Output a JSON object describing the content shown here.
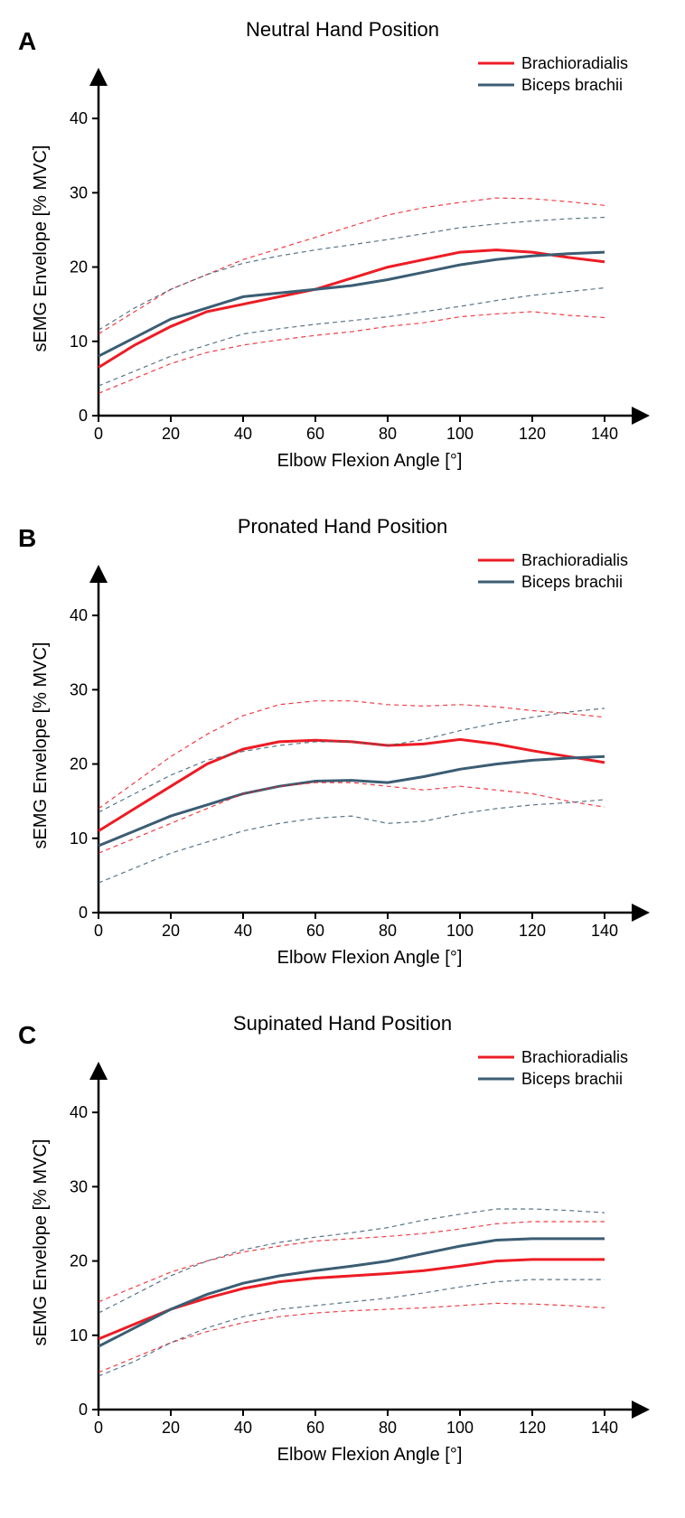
{
  "global": {
    "legend": {
      "brachioradialis": "Brachioradialis",
      "biceps": "Biceps brachii"
    },
    "colors": {
      "brachioradialis": "#ed1c24",
      "biceps": "#3b5d73",
      "brachioradialis_dash": "#ed1c24",
      "biceps_dash": "#3b5d73",
      "axis": "#000000",
      "tick_text": "#000000",
      "background": "#ffffff"
    },
    "xlabel": "Elbow Flexion Angle [°]",
    "ylabel": "sEMG Envelope [% MVC]",
    "xlim": [
      0,
      150
    ],
    "ylim": [
      0,
      45
    ],
    "xtick_step": 20,
    "xtick_max": 140,
    "ytick_step": 10,
    "ytick_max": 40,
    "solid_width": 3,
    "dash_width": 1.2,
    "dash_pattern": "5,4",
    "label_fontsize": 20,
    "tick_fontsize": 18,
    "legend_fontsize": 18,
    "title_fontsize": 22,
    "letter_fontsize": 28
  },
  "panels": [
    {
      "letter": "A",
      "title": "Neutral Hand Position",
      "type": "line",
      "x": [
        0,
        10,
        20,
        30,
        40,
        50,
        60,
        70,
        80,
        90,
        100,
        110,
        120,
        130,
        140
      ],
      "series": [
        {
          "name": "Brachioradialis",
          "color": "brachioradialis",
          "style": "solid",
          "y": [
            6.5,
            9.5,
            12,
            14,
            15,
            16,
            17,
            18.5,
            20,
            21,
            22,
            22.3,
            22,
            21.3,
            20.7
          ]
        },
        {
          "name": "Biceps brachii",
          "color": "biceps",
          "style": "solid",
          "y": [
            8,
            10.5,
            13,
            14.5,
            16,
            16.5,
            17,
            17.5,
            18.3,
            19.3,
            20.3,
            21,
            21.5,
            21.8,
            22
          ]
        },
        {
          "name": "Brachioradialis upper",
          "color": "brachioradialis_dash",
          "style": "dash",
          "y": [
            11,
            14,
            17,
            19,
            21,
            22.5,
            24,
            25.5,
            27,
            28,
            28.7,
            29.3,
            29.2,
            28.8,
            28.3
          ]
        },
        {
          "name": "Brachioradialis lower",
          "color": "brachioradialis_dash",
          "style": "dash",
          "y": [
            3,
            5,
            7,
            8.5,
            9.5,
            10.2,
            10.8,
            11.3,
            12,
            12.5,
            13.3,
            13.7,
            14,
            13.5,
            13.2
          ]
        },
        {
          "name": "Biceps brachii upper",
          "color": "biceps_dash",
          "style": "dash",
          "y": [
            11.5,
            14.5,
            17,
            19,
            20.5,
            21.5,
            22.3,
            23,
            23.7,
            24.5,
            25.3,
            25.8,
            26.2,
            26.5,
            26.7
          ]
        },
        {
          "name": "Biceps brachii lower",
          "color": "biceps_dash",
          "style": "dash",
          "y": [
            4,
            6,
            8,
            9.5,
            11,
            11.7,
            12.3,
            12.8,
            13.3,
            14,
            14.7,
            15.5,
            16.2,
            16.7,
            17.2
          ]
        }
      ]
    },
    {
      "letter": "B",
      "title": "Pronated Hand Position",
      "type": "line",
      "x": [
        0,
        10,
        20,
        30,
        40,
        50,
        60,
        70,
        80,
        90,
        100,
        110,
        120,
        130,
        140
      ],
      "series": [
        {
          "name": "Brachioradialis",
          "color": "brachioradialis",
          "style": "solid",
          "y": [
            11,
            14,
            17,
            20,
            22,
            23,
            23.2,
            23,
            22.5,
            22.7,
            23.3,
            22.7,
            21.8,
            21,
            20.2
          ]
        },
        {
          "name": "Biceps brachii",
          "color": "biceps",
          "style": "solid",
          "y": [
            9,
            11,
            13,
            14.5,
            16,
            17,
            17.7,
            17.8,
            17.5,
            18.3,
            19.3,
            20,
            20.5,
            20.8,
            21
          ]
        },
        {
          "name": "Brachioradialis upper",
          "color": "brachioradialis_dash",
          "style": "dash",
          "y": [
            14,
            17.5,
            21,
            24,
            26.5,
            28,
            28.5,
            28.5,
            28,
            27.8,
            28,
            27.7,
            27.2,
            26.8,
            26.3
          ]
        },
        {
          "name": "Brachioradialis lower",
          "color": "brachioradialis_dash",
          "style": "dash",
          "y": [
            8,
            10,
            12,
            14,
            16,
            17,
            17.5,
            17.5,
            17,
            16.5,
            17,
            16.5,
            16,
            15,
            14.2
          ]
        },
        {
          "name": "Biceps brachii upper",
          "color": "biceps_dash",
          "style": "dash",
          "y": [
            13.5,
            16,
            18.5,
            20.5,
            21.7,
            22.5,
            23,
            23,
            22.5,
            23.3,
            24.5,
            25.5,
            26.3,
            27,
            27.5
          ]
        },
        {
          "name": "Biceps brachii lower",
          "color": "biceps_dash",
          "style": "dash",
          "y": [
            4,
            6,
            8,
            9.5,
            11,
            12,
            12.7,
            13,
            12,
            12.3,
            13.3,
            14,
            14.5,
            14.8,
            15.2
          ]
        }
      ]
    },
    {
      "letter": "C",
      "title": "Supinated Hand Position",
      "type": "line",
      "x": [
        0,
        10,
        20,
        30,
        40,
        50,
        60,
        70,
        80,
        90,
        100,
        110,
        120,
        130,
        140
      ],
      "series": [
        {
          "name": "Brachioradialis",
          "color": "brachioradialis",
          "style": "solid",
          "y": [
            9.5,
            11.5,
            13.5,
            15,
            16.3,
            17.2,
            17.7,
            18,
            18.3,
            18.7,
            19.3,
            20,
            20.2,
            20.2,
            20.2
          ]
        },
        {
          "name": "Biceps brachii",
          "color": "biceps",
          "style": "solid",
          "y": [
            8.5,
            11,
            13.5,
            15.5,
            17,
            18,
            18.7,
            19.3,
            20,
            21,
            22,
            22.8,
            23,
            23,
            23
          ]
        },
        {
          "name": "Brachioradialis upper",
          "color": "brachioradialis_dash",
          "style": "dash",
          "y": [
            14.5,
            16.5,
            18.5,
            20,
            21.2,
            22,
            22.7,
            23,
            23.3,
            23.7,
            24.3,
            25,
            25.3,
            25.3,
            25.3
          ]
        },
        {
          "name": "Brachioradialis lower",
          "color": "brachioradialis_dash",
          "style": "dash",
          "y": [
            5,
            7,
            9,
            10.5,
            11.7,
            12.5,
            13,
            13.3,
            13.5,
            13.7,
            14,
            14.3,
            14.2,
            14,
            13.7
          ]
        },
        {
          "name": "Biceps brachii upper",
          "color": "biceps_dash",
          "style": "dash",
          "y": [
            13,
            15.5,
            18,
            20,
            21.5,
            22.5,
            23.2,
            23.8,
            24.5,
            25.5,
            26.3,
            27,
            27,
            26.8,
            26.5
          ]
        },
        {
          "name": "Biceps brachii lower",
          "color": "biceps_dash",
          "style": "dash",
          "y": [
            4.5,
            6.5,
            9,
            11,
            12.5,
            13.5,
            14,
            14.5,
            15,
            15.7,
            16.5,
            17.2,
            17.5,
            17.5,
            17.5
          ]
        }
      ]
    }
  ]
}
